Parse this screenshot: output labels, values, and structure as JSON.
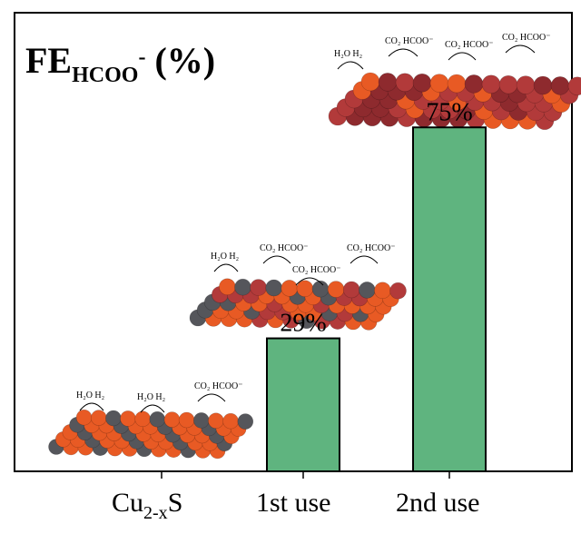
{
  "chart_data": {
    "type": "bar",
    "title": {
      "main": "FE",
      "subscript": "HCOO",
      "superscript": "-",
      "suffix": " (%)"
    },
    "categories": [
      {
        "base": "Cu",
        "sub": "2-x",
        "tail": "S"
      },
      {
        "base": "1st use",
        "sub": "",
        "tail": ""
      },
      {
        "base": "2nd use",
        "sub": "",
        "tail": ""
      }
    ],
    "values": [
      null,
      29,
      75
    ],
    "data_labels": [
      "",
      "29%",
      "75%"
    ],
    "ylim": [
      0,
      100
    ],
    "bar_color": "#5fb47f",
    "bar_edge_color": "#000000",
    "grid": false,
    "legend": "none"
  },
  "illustrations": [
    {
      "for_category": 0,
      "labels": [
        "H₂O  H₂",
        "H₂O  H₂",
        "CO₂  HCOO⁻"
      ],
      "atom_colors": [
        "#e85a24",
        "#55565b"
      ]
    },
    {
      "for_category": 1,
      "labels": [
        "H₂O  H₂",
        "CO₂  HCOO⁻",
        "CO₂  HCOO⁻",
        "CO₂  HCOO⁻"
      ],
      "atom_colors": [
        "#e85a24",
        "#b23a3a",
        "#55565b"
      ]
    },
    {
      "for_category": 2,
      "labels": [
        "H₂O  H₂",
        "CO₂  HCOO⁻",
        "CO₂  HCOO⁻",
        "CO₂  HCOO⁻"
      ],
      "atom_colors": [
        "#b23a3a",
        "#8e2a2e",
        "#e85a24"
      ]
    }
  ]
}
